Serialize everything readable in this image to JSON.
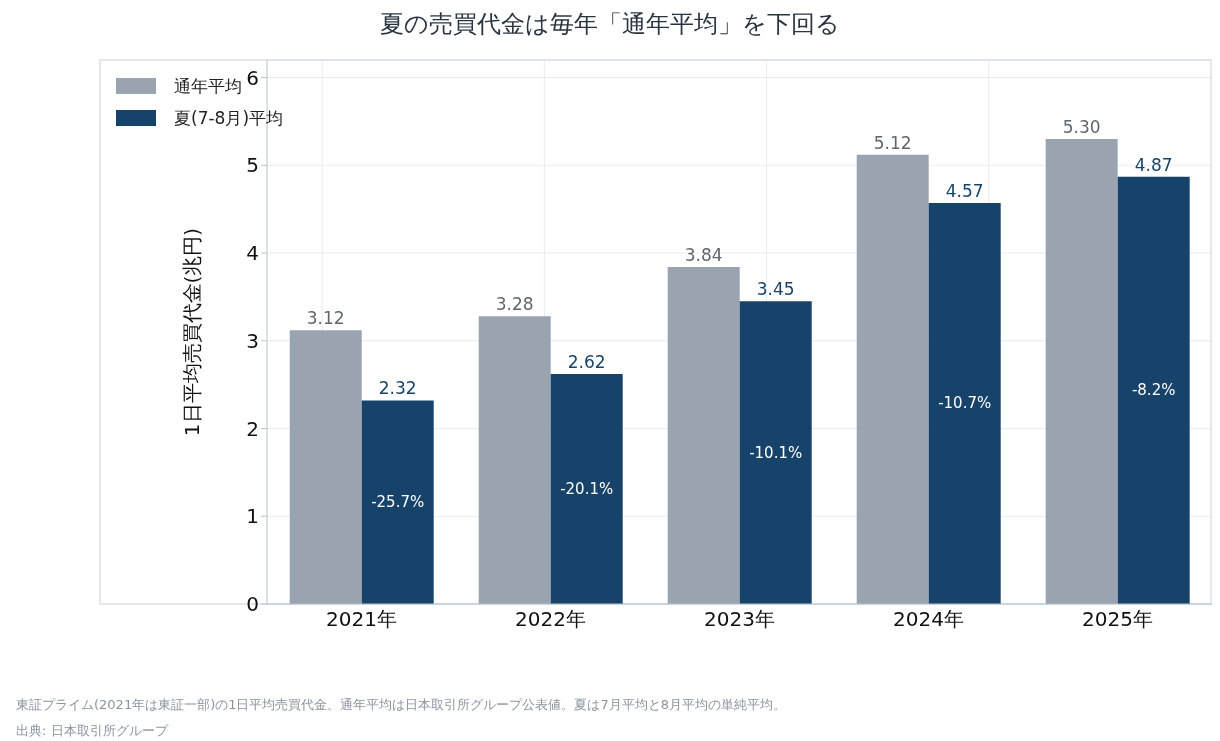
{
  "chart_data": {
    "type": "bar",
    "title": "夏の売買代金は毎年「通年平均」を下回る",
    "ylabel": "1日平均売買代金(兆円)",
    "categories": [
      "2021年",
      "2022年",
      "2023年",
      "2024年",
      "2025年"
    ],
    "series": [
      {
        "name": "通年平均",
        "color": "#9aa4b1",
        "values": [
          3.12,
          3.28,
          3.84,
          5.12,
          5.3
        ],
        "value_labels": [
          "3.12",
          "3.28",
          "3.84",
          "5.12",
          "5.30"
        ]
      },
      {
        "name": "夏(7-8月)平均",
        "color": "#17436a",
        "values": [
          2.32,
          2.62,
          3.45,
          4.57,
          4.87
        ],
        "value_labels": [
          "2.32",
          "2.62",
          "3.45",
          "4.57",
          "4.87"
        ]
      }
    ],
    "ylim": [
      0,
      6.2
    ],
    "yticks": [
      0,
      1,
      2,
      3,
      4,
      5,
      6
    ],
    "grid": true,
    "legend": "top left",
    "annotations": [
      {
        "text": "-25.7%",
        "x": "2021年",
        "y": 1.16
      },
      {
        "text": "-20.1%",
        "x": "2022年",
        "y": 1.31
      },
      {
        "text": "-10.1%",
        "x": "2023年",
        "y": 1.72
      },
      {
        "text": "-10.7%",
        "x": "2024年",
        "y": 2.28
      },
      {
        "text": "-8.2%",
        "x": "2025年",
        "y": 2.43
      },
      "東証プライム(2021年は東証一部)の1日平均売買代金。通年平均は日本取引所グループ公表値。夏は7月平均と8月平均の単純平均。",
      "出典: 日本取引所グループ"
    ]
  }
}
